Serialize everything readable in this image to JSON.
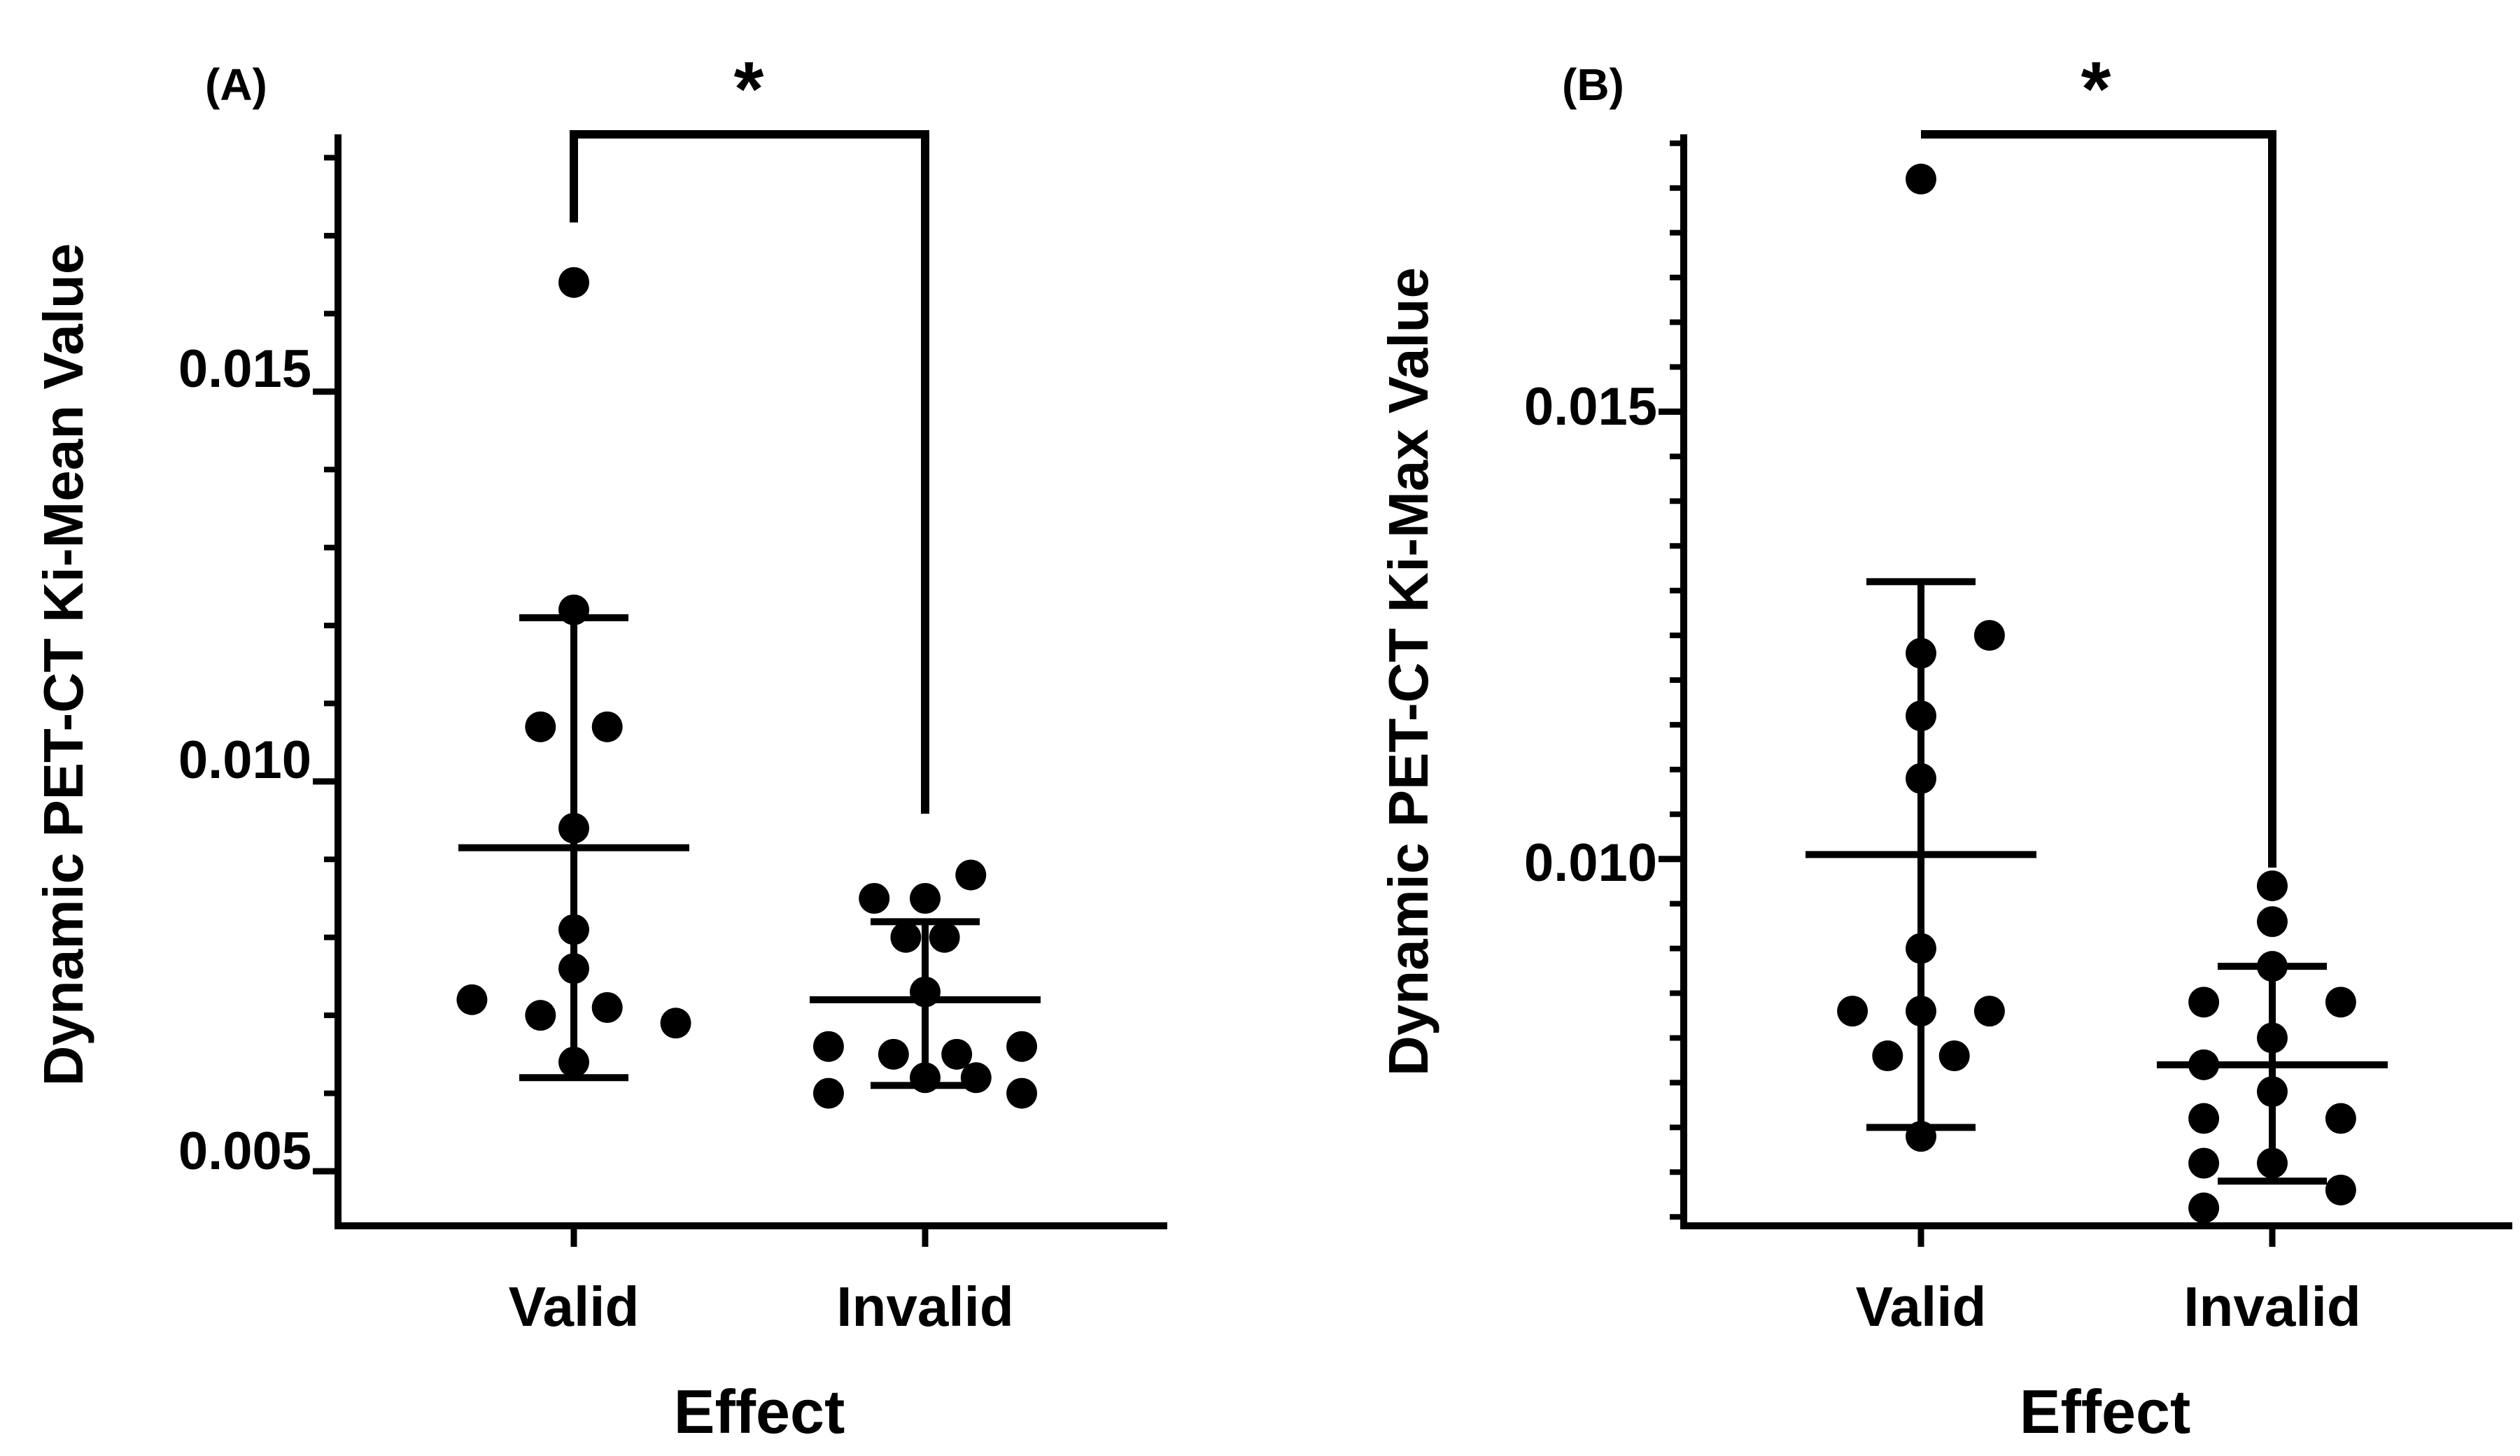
{
  "chart_data": [
    {
      "type": "scatter",
      "panel_label": "(A)",
      "xlabel": "Effect",
      "ylabel": "Dynamic PET-CT Ki-Mean Value",
      "categories": [
        "Valid",
        "Invalid"
      ],
      "ylim": [
        0.0043,
        0.0183
      ],
      "major_ticks": [
        0.005,
        0.01,
        0.015
      ],
      "tick_labels": [
        "0.005",
        "0.010",
        "0.015"
      ],
      "minor_step": 0.001,
      "significance": "*",
      "groups": [
        {
          "name": "Valid",
          "mean": 0.00915,
          "sd_low": 0.0062,
          "sd_high": 0.0121,
          "points": [
            {
              "dx": 0,
              "y": 0.0164
            },
            {
              "dx": 0,
              "y": 0.0122
            },
            {
              "dx": -0.095,
              "y": 0.0107
            },
            {
              "dx": 0.095,
              "y": 0.0107
            },
            {
              "dx": 0,
              "y": 0.0094
            },
            {
              "dx": 0,
              "y": 0.0081
            },
            {
              "dx": 0,
              "y": 0.0076
            },
            {
              "dx": -0.29,
              "y": 0.0072
            },
            {
              "dx": -0.095,
              "y": 0.007
            },
            {
              "dx": 0.095,
              "y": 0.0071
            },
            {
              "dx": 0.29,
              "y": 0.0069
            },
            {
              "dx": 0,
              "y": 0.0064
            }
          ]
        },
        {
          "name": "Invalid",
          "mean": 0.0072,
          "sd_low": 0.0061,
          "sd_high": 0.0082,
          "points": [
            {
              "dx": 0.13,
              "y": 0.0088
            },
            {
              "dx": -0.145,
              "y": 0.0085
            },
            {
              "dx": 0,
              "y": 0.0085
            },
            {
              "dx": -0.055,
              "y": 0.008
            },
            {
              "dx": 0.055,
              "y": 0.008
            },
            {
              "dx": 0,
              "y": 0.0073
            },
            {
              "dx": -0.275,
              "y": 0.0066
            },
            {
              "dx": -0.09,
              "y": 0.0065
            },
            {
              "dx": 0.09,
              "y": 0.0065
            },
            {
              "dx": 0.275,
              "y": 0.0066
            },
            {
              "dx": -0.275,
              "y": 0.006
            },
            {
              "dx": 0,
              "y": 0.0062
            },
            {
              "dx": 0.145,
              "y": 0.0062
            },
            {
              "dx": 0.275,
              "y": 0.006
            }
          ]
        }
      ]
    },
    {
      "type": "scatter",
      "panel_label": "(B)",
      "xlabel": "Effect",
      "ylabel": "Dynamic PET-CT Ki-Max Value",
      "categories": [
        "Valid",
        "Invalid"
      ],
      "ylim": [
        0.0059,
        0.0181
      ],
      "major_ticks": [
        0.01,
        0.015
      ],
      "tick_labels": [
        "0.010",
        "0.015"
      ],
      "minor_step": 0.0005,
      "significance": "*",
      "groups": [
        {
          "name": "Valid",
          "mean": 0.01005,
          "sd_low": 0.007,
          "sd_high": 0.0131,
          "points": [
            {
              "dx": 0,
              "y": 0.0176
            },
            {
              "dx": 0.195,
              "y": 0.0125
            },
            {
              "dx": 0,
              "y": 0.0123
            },
            {
              "dx": 0,
              "y": 0.0116
            },
            {
              "dx": 0,
              "y": 0.0109
            },
            {
              "dx": 0,
              "y": 0.009
            },
            {
              "dx": -0.195,
              "y": 0.0083
            },
            {
              "dx": 0,
              "y": 0.0083
            },
            {
              "dx": 0.195,
              "y": 0.0083
            },
            {
              "dx": -0.095,
              "y": 0.0078
            },
            {
              "dx": 0.095,
              "y": 0.0078
            },
            {
              "dx": 0,
              "y": 0.0069
            }
          ]
        },
        {
          "name": "Invalid",
          "mean": 0.0077,
          "sd_low": 0.0064,
          "sd_high": 0.0088,
          "points": [
            {
              "dx": 0,
              "y": 0.0097
            },
            {
              "dx": 0,
              "y": 0.0093
            },
            {
              "dx": 0,
              "y": 0.0088
            },
            {
              "dx": -0.195,
              "y": 0.0084
            },
            {
              "dx": 0.195,
              "y": 0.0084
            },
            {
              "dx": 0,
              "y": 0.008
            },
            {
              "dx": -0.195,
              "y": 0.0077
            },
            {
              "dx": 0,
              "y": 0.0074
            },
            {
              "dx": -0.195,
              "y": 0.0071
            },
            {
              "dx": 0.195,
              "y": 0.0071
            },
            {
              "dx": -0.195,
              "y": 0.0066
            },
            {
              "dx": 0,
              "y": 0.0066
            },
            {
              "dx": 0.195,
              "y": 0.0063
            },
            {
              "dx": -0.195,
              "y": 0.0061
            }
          ]
        }
      ]
    }
  ]
}
